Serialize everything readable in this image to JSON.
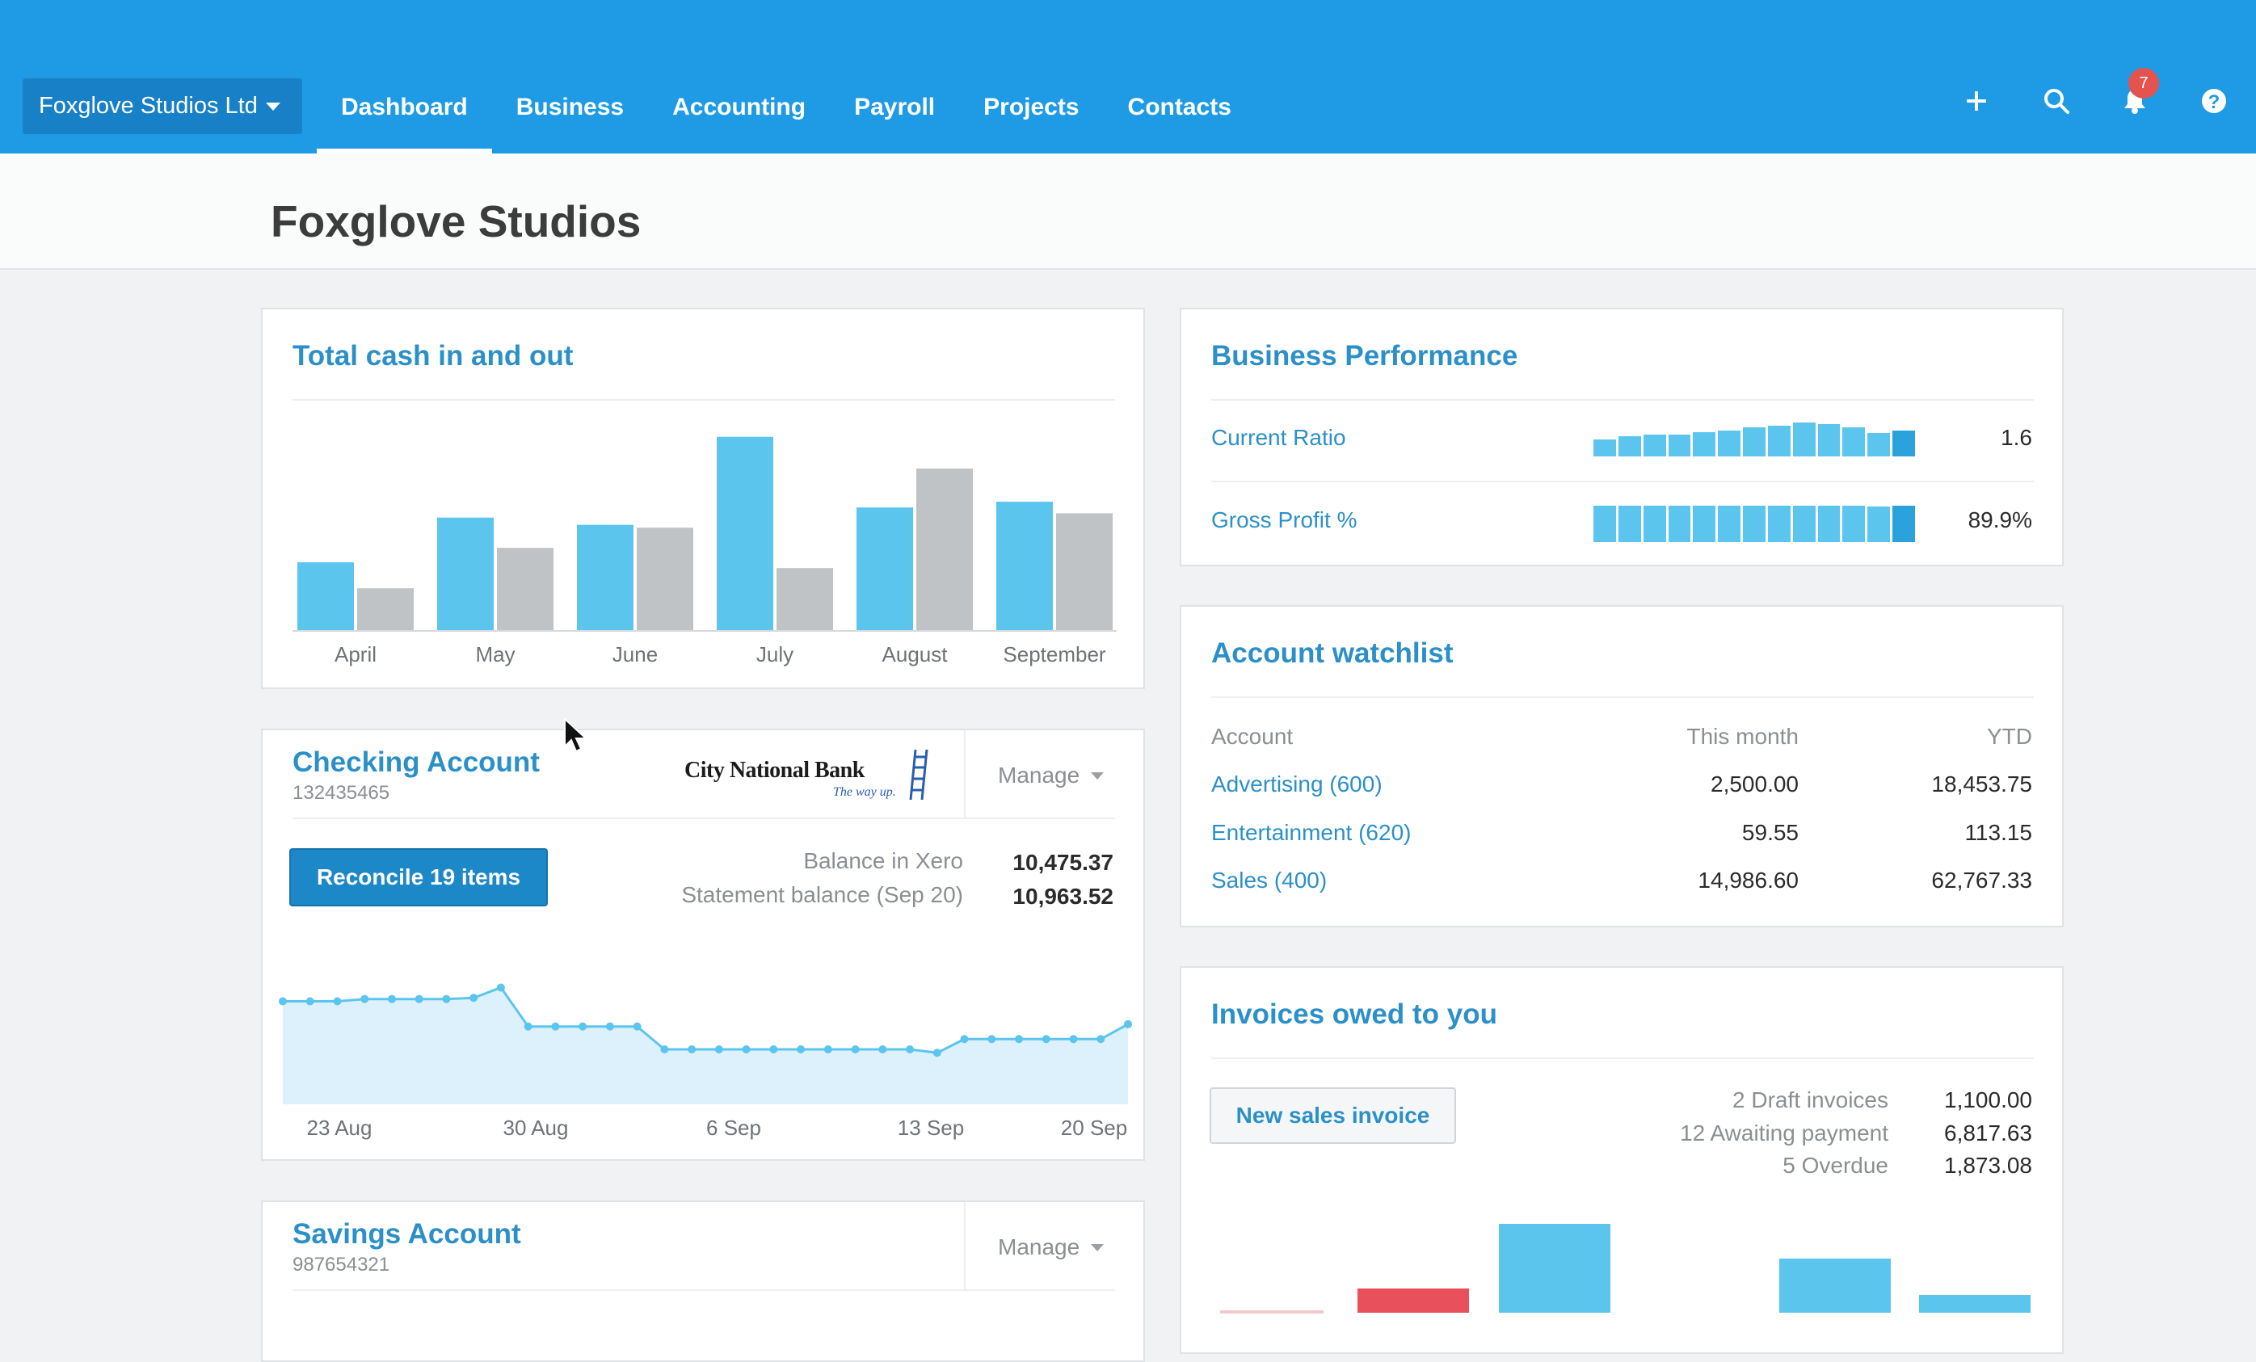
{
  "org_switcher": {
    "label": "Foxglove Studios Ltd"
  },
  "nav": {
    "dashboard": "Dashboard",
    "business": "Business",
    "accounting": "Accounting",
    "payroll": "Payroll",
    "projects": "Projects",
    "contacts": "Contacts"
  },
  "top_icons": {
    "add": "plus-icon",
    "search": "search-icon",
    "notifications": "bell-icon",
    "help": "help-icon",
    "notification_count": "7"
  },
  "page": {
    "title": "Foxglove Studios"
  },
  "cash_chart": {
    "title": "Total cash in and out",
    "chart_data": {
      "type": "bar",
      "categories": [
        "April",
        "May",
        "June",
        "July",
        "August",
        "September"
      ],
      "series": [
        {
          "values": [
            47,
            78,
            73,
            134,
            85,
            89
          ],
          "color": "#5bc5ee"
        },
        {
          "values": [
            29,
            57,
            71,
            43,
            112,
            81
          ],
          "color": "#bfc3c6"
        }
      ],
      "ylim": [
        0,
        140
      ]
    }
  },
  "checking": {
    "title": "Checking Account",
    "number": "132435465",
    "bank_logo": "City National Bank",
    "bank_tagline": "The way up.",
    "manage": "Manage",
    "reconcile": "Reconcile 19 items",
    "balance_label": "Balance in Xero",
    "balance_value": "10,475.37",
    "statement_label": "Statement balance (Sep 20)",
    "statement_value": "10,963.52",
    "chart_data": {
      "type": "area",
      "x_ticks": [
        "23 Aug",
        "30 Aug",
        "6 Sep",
        "13 Sep",
        "20 Sep"
      ],
      "values": [
        90,
        90,
        90,
        92,
        92,
        92,
        92,
        93,
        102,
        68,
        68,
        68,
        68,
        68,
        48,
        48,
        48,
        48,
        48,
        48,
        48,
        48,
        48,
        48,
        45,
        57,
        57,
        57,
        57,
        57,
        57,
        70
      ],
      "ylim": [
        0,
        120
      ],
      "color": "#5bc5ee"
    }
  },
  "savings": {
    "title": "Savings Account",
    "number": "987654321",
    "manage": "Manage"
  },
  "performance": {
    "title": "Business Performance",
    "rows": [
      {
        "label": "Current Ratio",
        "value": "1.6",
        "bars": [
          0.55,
          0.65,
          0.7,
          0.72,
          0.78,
          0.85,
          0.95,
          1.0,
          1.1,
          1.05,
          0.95,
          0.75,
          0.85
        ]
      },
      {
        "label": "Gross Profit %",
        "value": "89.9%",
        "bars": [
          1,
          1,
          1,
          1,
          1,
          1,
          1,
          1,
          1,
          1,
          1,
          0.97,
          1
        ]
      }
    ]
  },
  "watchlist": {
    "title": "Account watchlist",
    "headers": {
      "account": "Account",
      "month": "This month",
      "ytd": "YTD"
    },
    "rows": [
      {
        "account": "Advertising (600)",
        "month": "2,500.00",
        "ytd": "18,453.75"
      },
      {
        "account": "Entertainment (620)",
        "month": "59.55",
        "ytd": "113.15"
      },
      {
        "account": "Sales (400)",
        "month": "14,986.60",
        "ytd": "62,767.33"
      }
    ]
  },
  "invoices": {
    "title": "Invoices owed to you",
    "new_button": "New sales invoice",
    "rows": [
      {
        "label": "2 Draft invoices",
        "value": "1,100.00"
      },
      {
        "label": "12 Awaiting payment",
        "value": "6,817.63"
      },
      {
        "label": "5 Overdue",
        "value": "1,873.08"
      }
    ]
  },
  "colors": {
    "nav_blue": "#1e9be4",
    "link_blue": "#2c90c8",
    "bar_blue": "#5bc5ee",
    "bar_gray": "#bfc3c6",
    "overdue_red": "#e8505b"
  }
}
